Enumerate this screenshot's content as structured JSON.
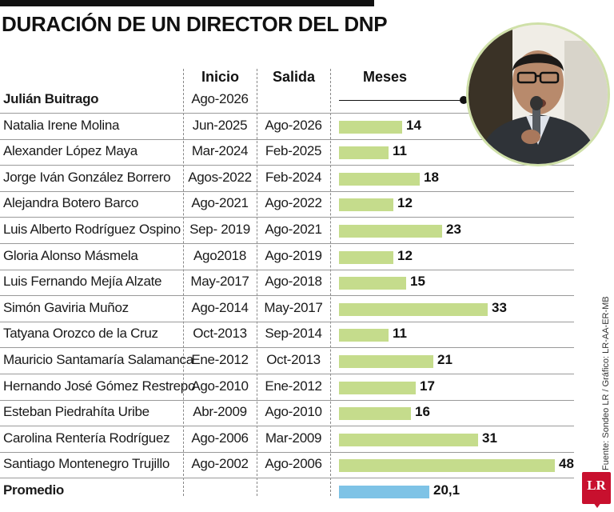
{
  "title": "DURACIÓN DE UN DIRECTOR DEL DNP",
  "headers": {
    "inicio": "Inicio",
    "salida": "Salida",
    "meses": "Meses"
  },
  "source": "Fuente: Sondeo LR / Gráfico: LR-AA-ER-MB",
  "logo_text": "LR",
  "colors": {
    "bar": "#c5dc8c",
    "promedio_bar": "#7ec3e6",
    "text": "#1a1a1a"
  },
  "chart_data": {
    "type": "bar",
    "orientation": "horizontal",
    "title": "DURACIÓN DE UN DIRECTOR DEL DNP",
    "xlabel": "Meses",
    "ylabel": "",
    "xlim": [
      0,
      48
    ],
    "rows": [
      {
        "name": "Julián Buitrago",
        "inicio": "Ago-2026",
        "salida": "",
        "value": null,
        "bold": true
      },
      {
        "name": "Natalia Irene Molina",
        "inicio": "Jun-2025",
        "salida": "Ago-2026",
        "value": 14,
        "label": "14"
      },
      {
        "name": "Alexander López Maya",
        "inicio": "Mar-2024",
        "salida": "Feb-2025",
        "value": 11,
        "label": "11"
      },
      {
        "name": "Jorge Iván González Borrero",
        "inicio": "Agos-2022",
        "salida": "Feb-2024",
        "value": 18,
        "label": "18"
      },
      {
        "name": "Alejandra Botero Barco",
        "inicio": "Ago-2021",
        "salida": "Ago-2022",
        "value": 12,
        "label": "12"
      },
      {
        "name": "Luis Alberto Rodríguez Ospino",
        "inicio": "Sep- 2019",
        "salida": "Ago-2021",
        "value": 23,
        "label": "23"
      },
      {
        "name": "Gloria Alonso Másmela",
        "inicio": "Ago2018",
        "salida": "Ago-2019",
        "value": 12,
        "label": "12"
      },
      {
        "name": "Luis Fernando Mejía Alzate",
        "inicio": "May-2017",
        "salida": "Ago-2018",
        "value": 15,
        "label": "15"
      },
      {
        "name": "Simón Gaviria Muñoz",
        "inicio": "Ago-2014",
        "salida": "May-2017",
        "value": 33,
        "label": "33"
      },
      {
        "name": "Tatyana Orozco de la Cruz",
        "inicio": "Oct-2013",
        "salida": "Sep-2014",
        "value": 11,
        "label": "11"
      },
      {
        "name": "Mauricio Santamaría Salamanca",
        "inicio": "Ene-2012",
        "salida": "Oct-2013",
        "value": 21,
        "label": "21"
      },
      {
        "name": "Hernando José Gómez Restrepo",
        "inicio": "Ago-2010",
        "salida": "Ene-2012",
        "value": 17,
        "label": "17"
      },
      {
        "name": "Esteban Piedrahíta Uribe",
        "inicio": "Abr-2009",
        "salida": "Ago-2010",
        "value": 16,
        "label": "16"
      },
      {
        "name": "Carolina Rentería Rodríguez",
        "inicio": "Ago-2006",
        "salida": "Mar-2009",
        "value": 31,
        "label": "31"
      },
      {
        "name": "Santiago Montenegro Trujillo",
        "inicio": "Ago-2002",
        "salida": "Ago-2006",
        "value": 48,
        "label": "48"
      },
      {
        "name": "Promedio",
        "inicio": "",
        "salida": "",
        "value": 20.1,
        "label": "20,1",
        "bold": true,
        "promedio": true
      }
    ]
  }
}
